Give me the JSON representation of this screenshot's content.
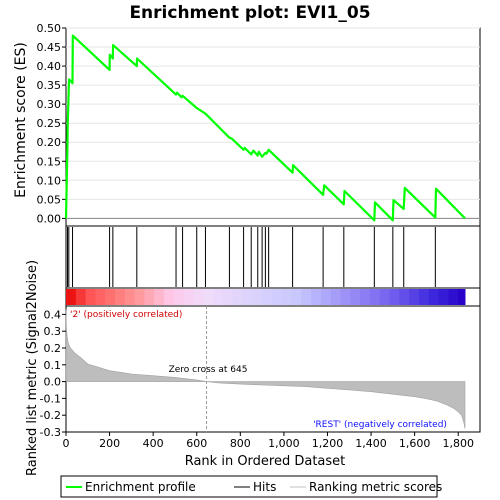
{
  "chart_data": {
    "type": "line",
    "title": "Enrichment plot: EVI1_05",
    "n_genes": 1831,
    "es_panel": {
      "ylabel": "Enrichment score (ES)",
      "ylim": [
        -0.02,
        0.5
      ],
      "yticks": [
        0.0,
        0.05,
        0.1,
        0.15,
        0.2,
        0.25,
        0.3,
        0.35,
        0.4,
        0.45,
        0.5
      ],
      "ytick_labels": [
        "0.00",
        "0.05",
        "0.10",
        "0.15",
        "0.20",
        "0.25",
        "0.30",
        "0.35",
        "0.40",
        "0.45",
        "0.50"
      ],
      "series": [
        {
          "name": "Enrichment profile",
          "color": "#00ff00",
          "x": [
            0,
            7,
            8,
            13,
            14,
            30,
            31,
            200,
            201,
            215,
            216,
            325,
            326,
            505,
            510,
            530,
            535,
            600,
            640,
            750,
            760,
            815,
            820,
            850,
            860,
            880,
            885,
            900,
            915,
            920,
            930,
            1040,
            1042,
            1180,
            1185,
            1275,
            1278,
            1415,
            1418,
            1500,
            1503,
            1550,
            1555,
            1695,
            1698,
            1831
          ],
          "y": [
            0.0,
            0.195,
            0.245,
            0.345,
            0.365,
            0.355,
            0.48,
            0.39,
            0.43,
            0.42,
            0.455,
            0.4,
            0.42,
            0.325,
            0.33,
            0.318,
            0.322,
            0.29,
            0.275,
            0.212,
            0.21,
            0.18,
            0.185,
            0.168,
            0.178,
            0.165,
            0.175,
            0.162,
            0.172,
            0.17,
            0.18,
            0.12,
            0.14,
            0.062,
            0.087,
            0.037,
            0.072,
            -0.005,
            0.042,
            -0.005,
            0.048,
            0.025,
            0.08,
            0.002,
            0.078,
            0.0
          ]
        }
      ]
    },
    "hits": {
      "name": "Hits",
      "positions": [
        7,
        13,
        30,
        200,
        215,
        325,
        505,
        535,
        600,
        640,
        750,
        815,
        850,
        880,
        900,
        915,
        930,
        1040,
        1180,
        1275,
        1415,
        1500,
        1550,
        1695
      ]
    },
    "rank_heatmap": {
      "label_positive": "'2' (positively correlated)",
      "label_negative": "'REST' (negatively correlated)"
    },
    "metric_panel": {
      "ylabel": "Ranked list metric (Signal2Noise)",
      "ylim": [
        -0.3,
        0.45
      ],
      "yticks": [
        -0.3,
        -0.2,
        -0.1,
        0.0,
        0.1,
        0.2,
        0.3,
        0.4
      ],
      "ytick_labels": [
        "-0.3",
        "-0.2",
        "-0.1",
        "0.0",
        "0.1",
        "0.2",
        "0.3",
        "0.4"
      ],
      "zero_cross": 645,
      "zero_cross_label": "Zero cross at 645",
      "profile_x": [
        0,
        2,
        5,
        10,
        20,
        40,
        70,
        100,
        150,
        200,
        300,
        400,
        500,
        600,
        645,
        700,
        800,
        900,
        1000,
        1100,
        1200,
        1300,
        1400,
        1500,
        1600,
        1650,
        1700,
        1750,
        1780,
        1800,
        1815,
        1825,
        1831
      ],
      "profile_y": [
        0.43,
        0.32,
        0.27,
        0.23,
        0.2,
        0.17,
        0.14,
        0.105,
        0.085,
        0.065,
        0.045,
        0.035,
        0.025,
        0.01,
        0.0,
        -0.008,
        -0.015,
        -0.02,
        -0.025,
        -0.03,
        -0.04,
        -0.05,
        -0.06,
        -0.075,
        -0.09,
        -0.1,
        -0.115,
        -0.14,
        -0.16,
        -0.18,
        -0.2,
        -0.24,
        -0.28
      ]
    },
    "xaxis": {
      "label": "Rank in Ordered Dataset",
      "xlim": [
        0,
        1900
      ],
      "ticks": [
        0,
        200,
        400,
        600,
        800,
        1000,
        1200,
        1400,
        1600,
        1800
      ],
      "tick_labels": [
        "0",
        "200",
        "400",
        "600",
        "800",
        "1,000",
        "1,200",
        "1,400",
        "1,600",
        "1,800"
      ]
    },
    "legend": [
      {
        "label": "Enrichment profile",
        "color": "#00ff00"
      },
      {
        "label": "Hits",
        "color": "#000000"
      },
      {
        "label": "Ranking metric scores",
        "color": "#c0c0c0"
      }
    ]
  }
}
